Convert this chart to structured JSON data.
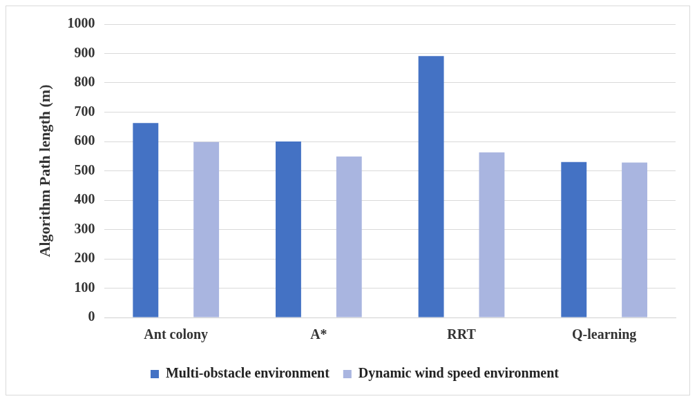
{
  "chart_data": {
    "type": "bar",
    "ylabel": "Algorithm Path length (m)",
    "categories": [
      "Ant colony",
      "A*",
      "RRT",
      "Q-learning"
    ],
    "series": [
      {
        "name": "Multi-obstacle environment",
        "color": "#4472c4",
        "values": [
          663,
          600,
          891,
          530
        ]
      },
      {
        "name": "Dynamic wind speed environment",
        "color": "#a9b5e0",
        "values": [
          598,
          549,
          563,
          528
        ]
      }
    ],
    "ylim": [
      0,
      1000
    ],
    "yticks": [
      0,
      100,
      200,
      300,
      400,
      500,
      600,
      700,
      800,
      900,
      1000
    ],
    "grid": "y",
    "legend": "bottom"
  }
}
